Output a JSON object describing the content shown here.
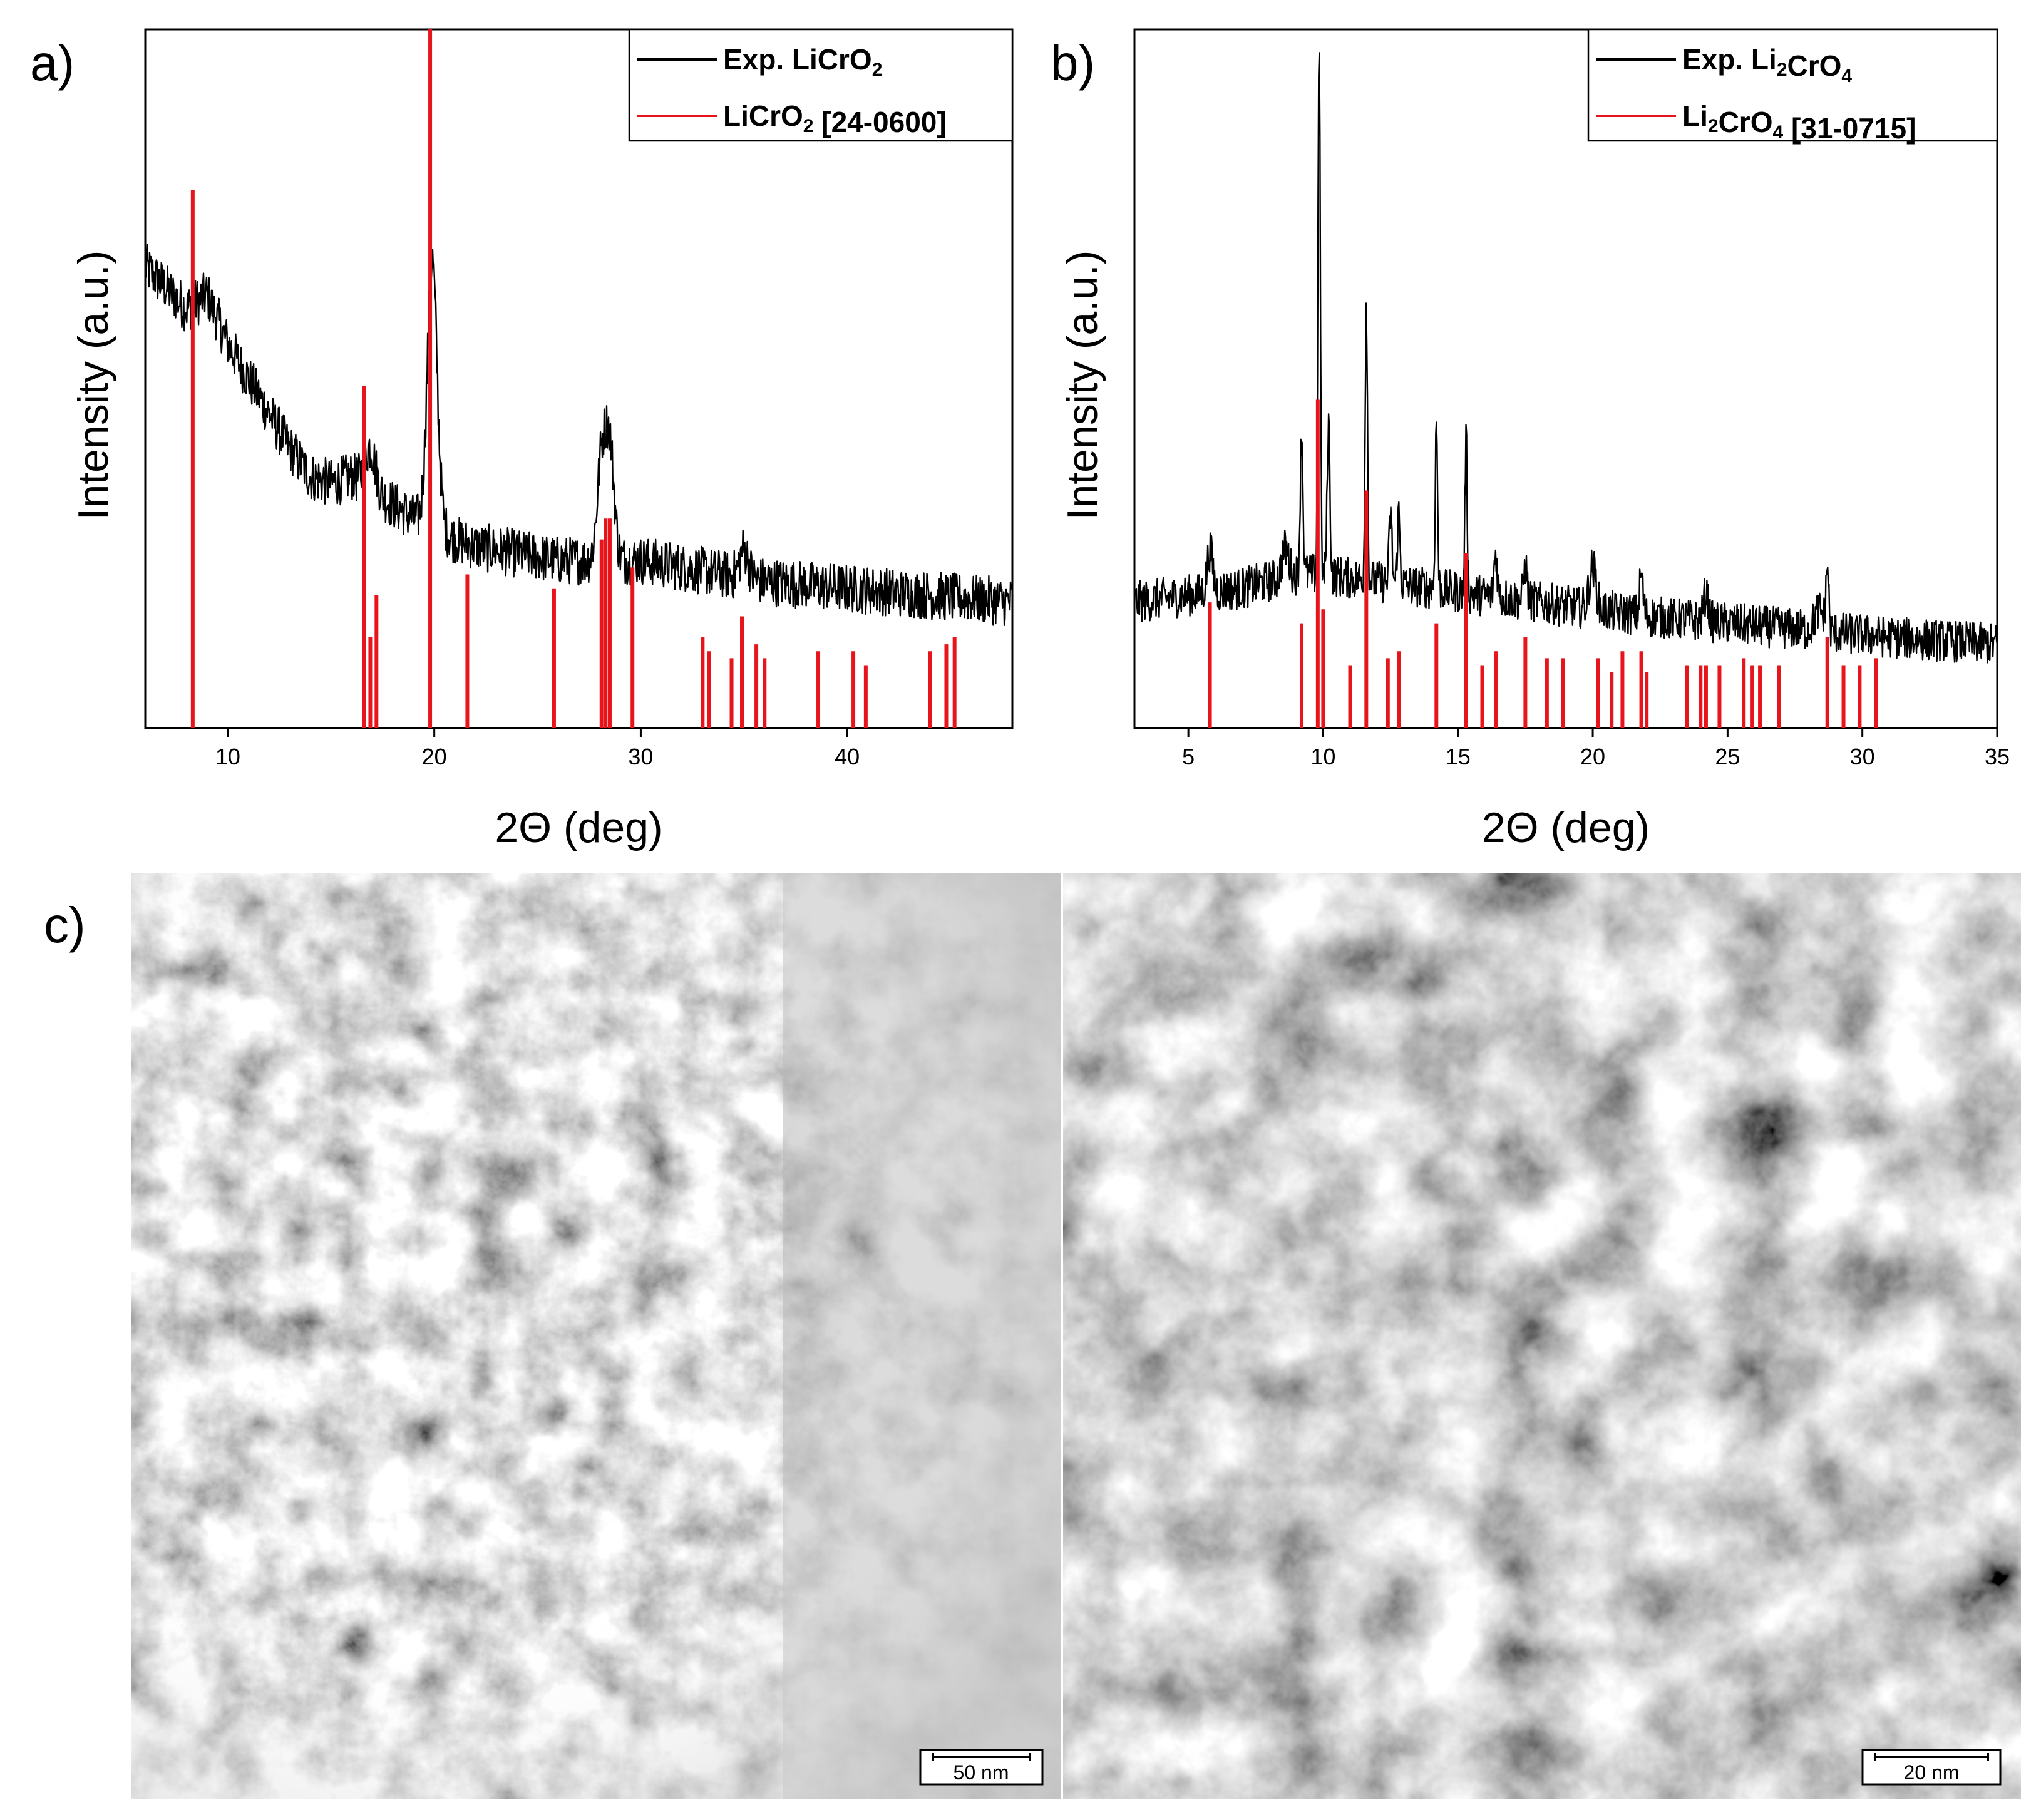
{
  "panels": {
    "a": {
      "label": "a)"
    },
    "b": {
      "label": "b)"
    },
    "c": {
      "label": "c)"
    }
  },
  "colors": {
    "experimental": "#000000",
    "reference": "#e8141c"
  },
  "chart_data": [
    {
      "type": "line",
      "panel": "a",
      "xlabel": "2Θ (deg)",
      "ylabel": "Intensity (a.u.)",
      "xlim": [
        6,
        48
      ],
      "ylim": [
        0,
        1
      ],
      "xticks": [
        10,
        20,
        30,
        40
      ],
      "y_tick_labels_shown": false,
      "grid": false,
      "legend_position": "top-right",
      "series": [
        {
          "name": "Exp. LiCrO2",
          "name_parts": {
            "pre": "Exp. LiCrO",
            "sub": "2",
            "post": ""
          },
          "kind": "pattern",
          "color": "#000000",
          "profile": [
            [
              6.0,
              0.66
            ],
            [
              7.0,
              0.63
            ],
            [
              8.0,
              0.6
            ],
            [
              9.0,
              0.62
            ],
            [
              10.0,
              0.55
            ],
            [
              11.0,
              0.5
            ],
            [
              12.0,
              0.45
            ],
            [
              13.0,
              0.4
            ],
            [
              14.0,
              0.36
            ],
            [
              15.0,
              0.35
            ],
            [
              16.0,
              0.36
            ],
            [
              17.0,
              0.34
            ],
            [
              18.0,
              0.32
            ],
            [
              19.0,
              0.3
            ],
            [
              20.0,
              0.29
            ],
            [
              21.0,
              0.27
            ],
            [
              22.0,
              0.26
            ],
            [
              24.0,
              0.25
            ],
            [
              26.0,
              0.24
            ],
            [
              28.0,
              0.24
            ],
            [
              30.0,
              0.24
            ],
            [
              32.0,
              0.23
            ],
            [
              34.0,
              0.22
            ],
            [
              36.0,
              0.21
            ],
            [
              40.0,
              0.2
            ],
            [
              44.0,
              0.19
            ],
            [
              48.0,
              0.18
            ]
          ],
          "peaks": [
            [
              16.9,
              0.06,
              0.6
            ],
            [
              19.9,
              0.38,
              0.55
            ],
            [
              28.1,
              0.14,
              0.5
            ],
            [
              28.5,
              0.16,
              0.5
            ],
            [
              35.0,
              0.04,
              0.5
            ]
          ],
          "noise": 0.035
        },
        {
          "name": "LiCrO2 [24-0600]",
          "name_parts": {
            "pre": "LiCrO",
            "sub": "2",
            "post": " [24-0600]"
          },
          "kind": "sticks",
          "color": "#e8141c",
          "x": [
            8.3,
            16.6,
            16.9,
            17.2,
            19.8,
            21.6,
            25.8,
            28.1,
            28.3,
            28.5,
            29.6,
            33.0,
            33.3,
            34.4,
            34.9,
            35.6,
            36.0,
            38.6,
            40.3,
            40.9,
            44.0,
            44.8,
            45.2
          ],
          "y": [
            0.77,
            0.49,
            0.13,
            0.19,
            1.0,
            0.22,
            0.2,
            0.27,
            0.3,
            0.3,
            0.23,
            0.13,
            0.11,
            0.1,
            0.16,
            0.12,
            0.1,
            0.11,
            0.11,
            0.09,
            0.11,
            0.12,
            0.13
          ]
        }
      ]
    },
    {
      "type": "line",
      "panel": "b",
      "xlabel": "2Θ (deg)",
      "ylabel": "Intensity (a.u.)",
      "xlim": [
        3,
        35
      ],
      "ylim": [
        0,
        1
      ],
      "xticks": [
        5,
        10,
        15,
        20,
        25,
        30,
        35
      ],
      "y_tick_labels_shown": false,
      "grid": false,
      "legend_position": "top-right",
      "series": [
        {
          "name": "Exp. Li2CrO4",
          "name_parts": {
            "pre": "Exp. Li",
            "sub": "2",
            "post": "CrO",
            "sub2": "4",
            "post2": ""
          },
          "kind": "pattern",
          "color": "#000000",
          "profile": [
            [
              3.0,
              0.18
            ],
            [
              5.0,
              0.19
            ],
            [
              7.0,
              0.2
            ],
            [
              9.0,
              0.22
            ],
            [
              10.0,
              0.22
            ],
            [
              12.0,
              0.21
            ],
            [
              14.0,
              0.2
            ],
            [
              16.0,
              0.19
            ],
            [
              18.0,
              0.18
            ],
            [
              20.0,
              0.17
            ],
            [
              22.0,
              0.16
            ],
            [
              25.0,
              0.15
            ],
            [
              28.0,
              0.14
            ],
            [
              31.0,
              0.13
            ],
            [
              35.0,
              0.12
            ]
          ],
          "peaks": [
            [
              5.8,
              0.06,
              0.25
            ],
            [
              8.6,
              0.04,
              0.3
            ],
            [
              9.2,
              0.2,
              0.12
            ],
            [
              9.85,
              0.78,
              0.1
            ],
            [
              10.2,
              0.22,
              0.12
            ],
            [
              11.6,
              0.4,
              0.1
            ],
            [
              12.5,
              0.1,
              0.12
            ],
            [
              12.8,
              0.1,
              0.12
            ],
            [
              14.2,
              0.24,
              0.1
            ],
            [
              15.3,
              0.22,
              0.1
            ],
            [
              16.4,
              0.06,
              0.15
            ],
            [
              17.5,
              0.05,
              0.15
            ],
            [
              20.0,
              0.06,
              0.3
            ],
            [
              21.8,
              0.06,
              0.15
            ],
            [
              24.2,
              0.04,
              0.2
            ],
            [
              28.7,
              0.09,
              0.12
            ],
            [
              28.4,
              0.03,
              0.4
            ]
          ],
          "noise": 0.03
        },
        {
          "name": "Li2CrO4 [31-0715]",
          "name_parts": {
            "pre": "Li",
            "sub": "2",
            "post": "CrO",
            "sub2": "4",
            "post2": " [31-0715]"
          },
          "kind": "sticks",
          "color": "#e8141c",
          "x": [
            5.8,
            9.2,
            9.8,
            10.0,
            11.0,
            11.6,
            12.4,
            12.8,
            14.2,
            15.3,
            15.9,
            16.4,
            17.5,
            18.3,
            18.9,
            20.2,
            20.7,
            21.1,
            21.8,
            22.0,
            23.5,
            24.0,
            24.2,
            24.7,
            25.6,
            25.9,
            26.2,
            26.9,
            28.7,
            29.3,
            29.9,
            30.5
          ],
          "y": [
            0.18,
            0.15,
            0.47,
            0.17,
            0.09,
            0.34,
            0.1,
            0.11,
            0.15,
            0.25,
            0.09,
            0.11,
            0.13,
            0.1,
            0.1,
            0.1,
            0.08,
            0.11,
            0.11,
            0.08,
            0.09,
            0.09,
            0.09,
            0.09,
            0.1,
            0.09,
            0.09,
            0.09,
            0.13,
            0.09,
            0.09,
            0.1
          ]
        }
      ]
    }
  ],
  "tem": {
    "left": {
      "scale_bar": "50 nm"
    },
    "right": {
      "scale_bar": "20 nm"
    }
  }
}
